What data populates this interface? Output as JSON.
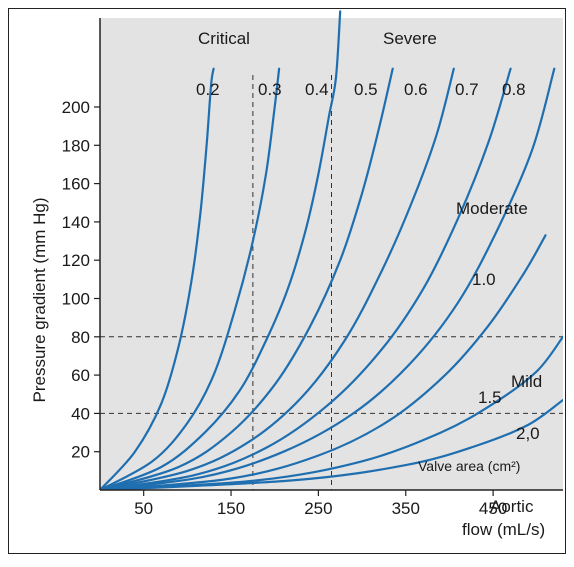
{
  "chart_data": {
    "type": "line",
    "title": "",
    "xlabel_line1": "Aortic",
    "xlabel_line2": "flow (mL/s)",
    "ylabel": "Pressure gradient (mm Hg)",
    "legend_title": "Valve area (cm²)",
    "xlim": [
      0,
      530
    ],
    "ylim": [
      0,
      220
    ],
    "x_ticks": [
      50,
      150,
      250,
      350,
      450
    ],
    "y_ticks": [
      20,
      40,
      60,
      80,
      100,
      120,
      140,
      160,
      180,
      200
    ],
    "grid": false,
    "reference_lines": {
      "horizontal": [
        40,
        80
      ],
      "vertical": [
        175,
        265
      ]
    },
    "zone_labels": [
      "Critical",
      "Severe",
      "Moderate",
      "Mild"
    ],
    "series": [
      {
        "name": "0.2",
        "label": "0.2",
        "color": "#1f6fb0",
        "x": [
          0,
          40,
          70,
          90,
          105,
          115,
          122,
          126,
          128,
          130
        ],
        "y": [
          0,
          20,
          45,
          75,
          110,
          145,
          180,
          205,
          215,
          220
        ]
      },
      {
        "name": "0.3",
        "label": "0.3",
        "color": "#1f6fb0",
        "x": [
          0,
          60,
          100,
          130,
          155,
          175,
          190,
          200,
          205
        ],
        "y": [
          0,
          15,
          35,
          60,
          95,
          130,
          165,
          200,
          220
        ]
      },
      {
        "name": "0.4",
        "label": "0.4",
        "color": "#1f6fb0",
        "x": [
          0,
          70,
          120,
          160,
          190,
          215,
          235,
          250,
          262,
          270,
          275
        ],
        "y": [
          0,
          12,
          30,
          52,
          78,
          105,
          135,
          165,
          195,
          215,
          250
        ]
      },
      {
        "name": "0.5",
        "label": "0.5",
        "color": "#1f6fb0",
        "x": [
          0,
          90,
          150,
          200,
          240,
          275,
          300,
          320,
          335
        ],
        "y": [
          0,
          12,
          30,
          55,
          85,
          120,
          155,
          190,
          220
        ]
      },
      {
        "name": "0.6",
        "label": "0.6",
        "color": "#1f6fb0",
        "x": [
          0,
          100,
          170,
          230,
          280,
          320,
          355,
          385,
          405
        ],
        "y": [
          0,
          10,
          25,
          48,
          78,
          112,
          148,
          185,
          220
        ]
      },
      {
        "name": "0.7",
        "label": "0.7",
        "color": "#1f6fb0",
        "x": [
          0,
          110,
          190,
          260,
          320,
          370,
          410,
          445,
          470
        ],
        "y": [
          0,
          8,
          22,
          44,
          72,
          105,
          142,
          182,
          220
        ]
      },
      {
        "name": "0.8",
        "label": "0.8",
        "color": "#1f6fb0",
        "x": [
          0,
          120,
          210,
          290,
          355,
          410,
          455,
          495,
          520
        ],
        "y": [
          0,
          7,
          20,
          40,
          66,
          98,
          136,
          178,
          220
        ]
      },
      {
        "name": "1.0",
        "label": "1.0",
        "color": "#1f6fb0",
        "x": [
          0,
          150,
          250,
          330,
          395,
          445,
          485,
          510
        ],
        "y": [
          0,
          6,
          18,
          36,
          60,
          86,
          113,
          133
        ]
      },
      {
        "name": "1.5",
        "label": "1.5",
        "color": "#1f6fb0",
        "x": [
          0,
          180,
          300,
          390,
          450,
          500,
          530
        ],
        "y": [
          0,
          5,
          15,
          30,
          45,
          62,
          80
        ]
      },
      {
        "name": "2,0",
        "label": "2,0",
        "color": "#1f6fb0",
        "x": [
          0,
          220,
          350,
          430,
          490,
          530
        ],
        "y": [
          0,
          5,
          13,
          23,
          34,
          47
        ]
      }
    ]
  },
  "colors": {
    "plot_bg": "#e3e3e3",
    "curve": "#1f6fb0",
    "axis": "#222222",
    "ref_line": "#333333"
  }
}
